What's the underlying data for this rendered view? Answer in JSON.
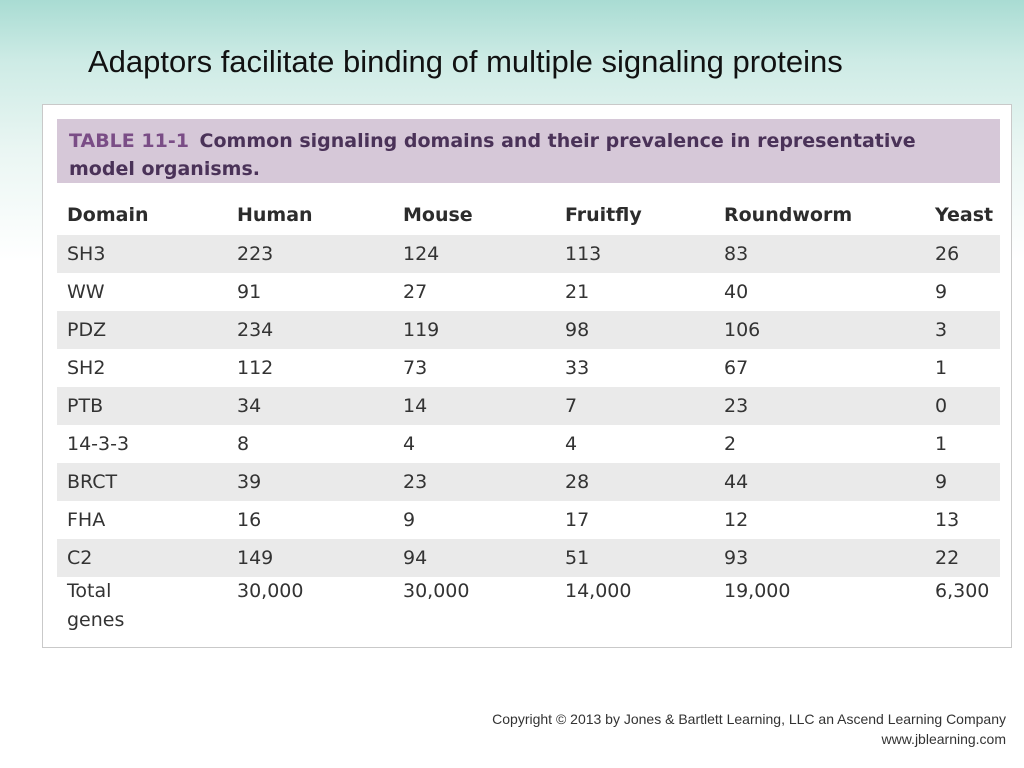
{
  "slide": {
    "title": "Adaptors facilitate binding of multiple signaling proteins"
  },
  "table": {
    "caption_label": "TABLE 11-1",
    "caption_text": "Common signaling domains and their prevalence in representative\nmodel organisms.",
    "columns": [
      "Domain",
      "Human",
      "Mouse",
      "Fruitfly",
      "Roundworm",
      "Yeast"
    ],
    "rows": [
      [
        "SH3",
        "223",
        "124",
        "113",
        "83",
        "26"
      ],
      [
        "WW",
        "91",
        "27",
        "21",
        "40",
        "9"
      ],
      [
        "PDZ",
        "234",
        "119",
        "98",
        "106",
        "3"
      ],
      [
        "SH2",
        "112",
        "73",
        "33",
        "67",
        "1"
      ],
      [
        "PTB",
        "34",
        "14",
        "7",
        "23",
        "0"
      ],
      [
        "14-3-3",
        "8",
        "4",
        "4",
        "2",
        "1"
      ],
      [
        "BRCT",
        "39",
        "23",
        "28",
        "44",
        "9"
      ],
      [
        "FHA",
        "16",
        "9",
        "17",
        "12",
        "13"
      ],
      [
        "C2",
        "149",
        "94",
        "51",
        "93",
        "22"
      ],
      [
        "Total\ngenes",
        "30,000",
        "30,000",
        "14,000",
        "19,000",
        "6,300"
      ]
    ]
  },
  "footer": {
    "copyright": "Copyright © 2013 by Jones & Bartlett Learning, LLC an Ascend Learning Company",
    "website": "www.jblearning.com"
  }
}
